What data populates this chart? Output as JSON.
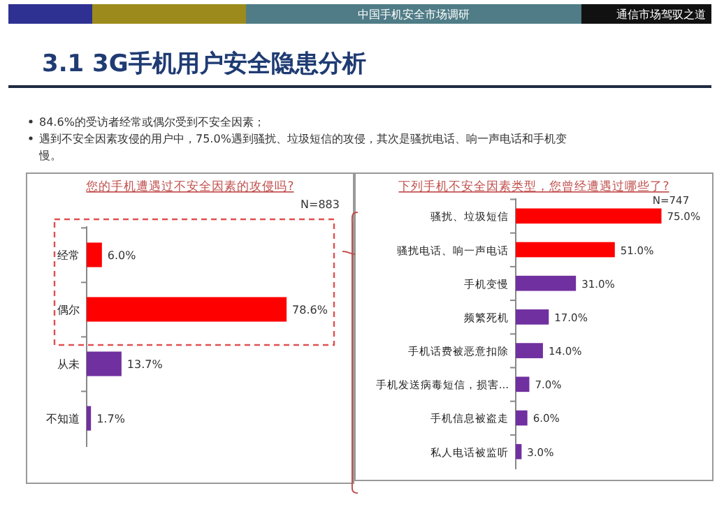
{
  "chart_data": [
    {
      "type": "bar",
      "orientation": "horizontal",
      "title": "您的手机遭遇过不安全因素的攻侵吗?",
      "categories": [
        "经常",
        "偶尔",
        "从未",
        "不知道"
      ],
      "values": [
        6.0,
        78.6,
        13.7,
        1.7
      ],
      "colors": [
        "#ff0000",
        "#ff0000",
        "#7030a0",
        "#7030a0"
      ],
      "value_labels": [
        "6.0%",
        "78.6%",
        "13.7%",
        "1.7%"
      ],
      "annotations": [
        "中国手机安全市场调研",
        "通信市场驾驭之道",
        "3.1 3G手机用户安全隐患分析",
        "84.6%的受访者经常或偶尔受到不安全因素；",
        "遇到不安全因素攻侵的用户中，75.0%遇到骚扰、垃圾短信的攻侵，其次是骚扰电话、响一声电话和手机变慢。",
        "N=883"
      ]
    },
    {
      "type": "bar",
      "orientation": "horizontal",
      "title": "下列手机不安全因素类型，您曾经遭遇过哪些了?",
      "categories": [
        "骚扰、垃圾短信",
        "骚扰电话、响一声电话",
        "手机变慢",
        "频繁死机",
        "手机话费被恶意扣除",
        "手机发送病毒短信，损害...",
        "手机信息被盗走",
        "私人电话被监听"
      ],
      "values": [
        75.0,
        51.0,
        31.0,
        17.0,
        14.0,
        7.0,
        6.0,
        3.0
      ],
      "colors": [
        "#ff0000",
        "#ff0000",
        "#7030a0",
        "#7030a0",
        "#7030a0",
        "#7030a0",
        "#7030a0",
        "#7030a0"
      ],
      "value_labels": [
        "75.0%",
        "51.0%",
        "31.0%",
        "17.0%",
        "14.0%",
        "7.0%",
        "6.0%",
        "3.0%"
      ],
      "annotations": [
        "N=747"
      ]
    }
  ]
}
